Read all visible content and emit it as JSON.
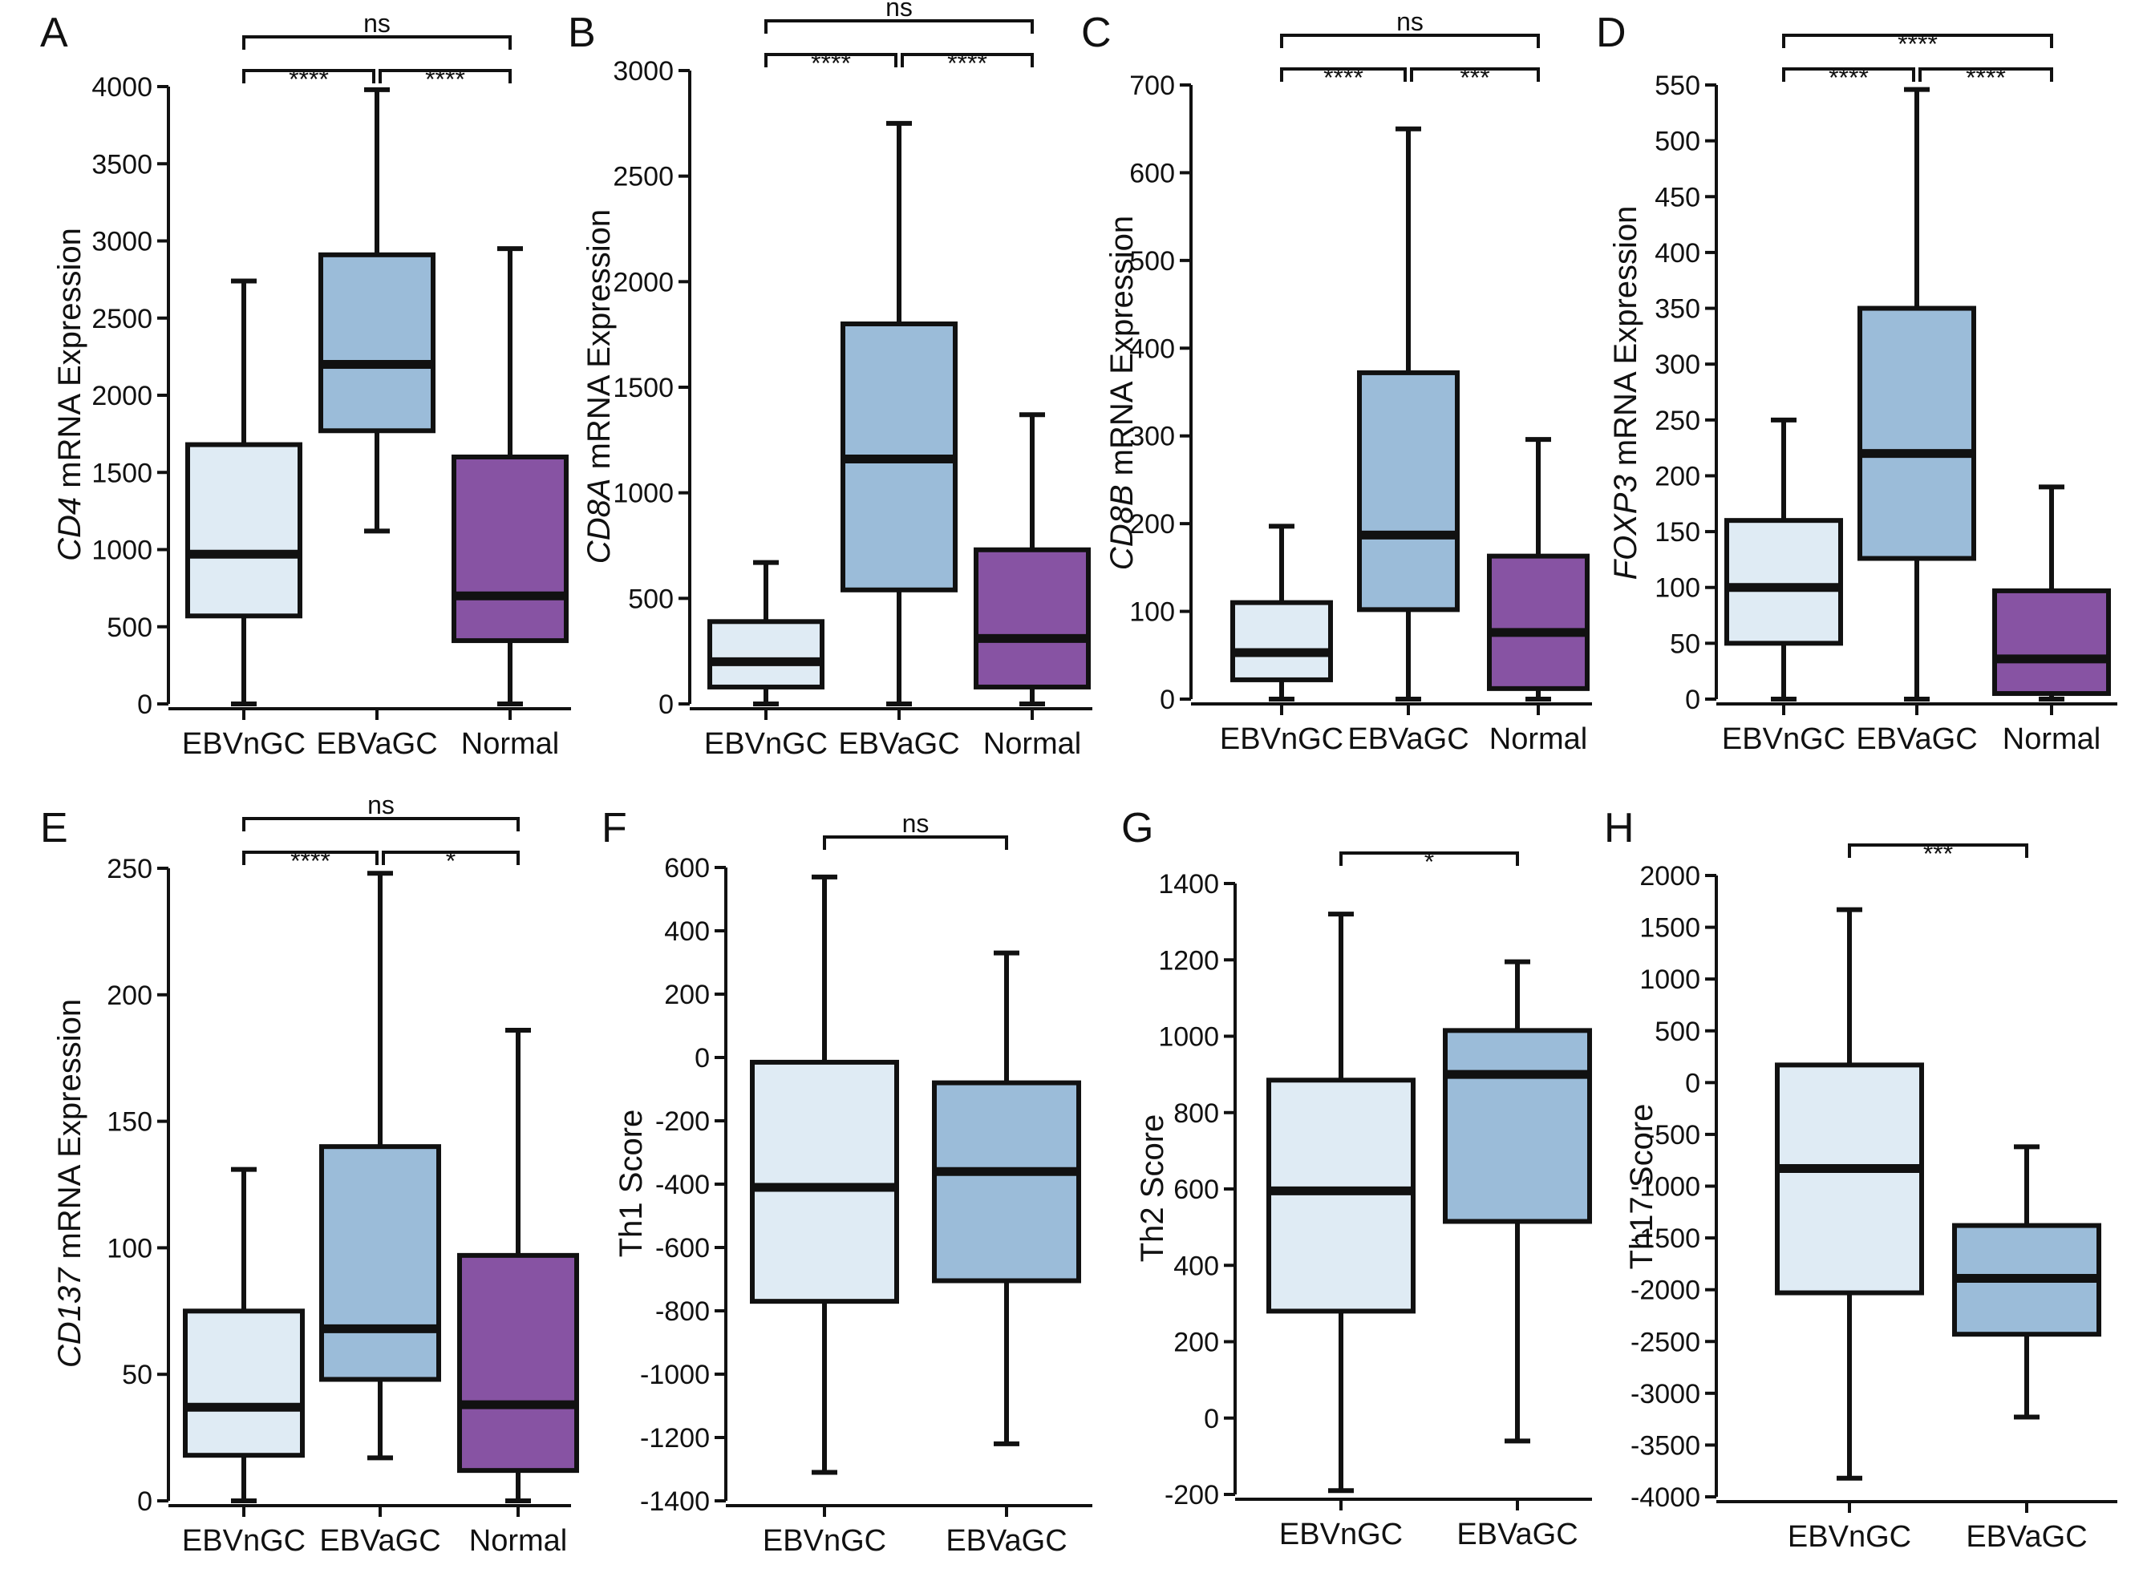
{
  "colors": {
    "EBVnGC": "#dfebf4",
    "EBVaGC": "#9bbcd9",
    "Normal": "#8753a3",
    "stroke": "#111111"
  },
  "chart_data": [
    {
      "panel": "A",
      "type": "box",
      "ylabel_gene": "CD4",
      "ylabel_rest": " mRNA Expression",
      "ylim": [
        0,
        4000
      ],
      "yticks": [
        0,
        500,
        1000,
        1500,
        2000,
        2500,
        3000,
        3500,
        4000
      ],
      "categories": [
        "EBVnGC",
        "EBVaGC",
        "Normal"
      ],
      "boxes": [
        {
          "min": 0,
          "q1": 570,
          "median": 970,
          "q3": 1680,
          "max": 2740
        },
        {
          "min": 1120,
          "q1": 1770,
          "median": 2200,
          "q3": 2910,
          "max": 3980
        },
        {
          "min": 0,
          "q1": 410,
          "median": 700,
          "q3": 1600,
          "max": 2950
        }
      ],
      "comparisons": [
        {
          "from": 0,
          "to": 1,
          "label": "****",
          "level": 1
        },
        {
          "from": 1,
          "to": 2,
          "label": "****",
          "level": 1
        },
        {
          "from": 0,
          "to": 2,
          "label": "ns",
          "level": 2
        }
      ]
    },
    {
      "panel": "B",
      "type": "box",
      "ylabel_gene": "CD8A",
      "ylabel_rest": " mRNA Expression",
      "ylim": [
        0,
        3000
      ],
      "yticks": [
        0,
        500,
        1000,
        1500,
        2000,
        2500,
        3000
      ],
      "categories": [
        "EBVnGC",
        "EBVaGC",
        "Normal"
      ],
      "boxes": [
        {
          "min": 0,
          "q1": 80,
          "median": 200,
          "q3": 390,
          "max": 670
        },
        {
          "min": 0,
          "q1": 540,
          "median": 1160,
          "q3": 1800,
          "max": 2750
        },
        {
          "min": 0,
          "q1": 80,
          "median": 310,
          "q3": 730,
          "max": 1370
        }
      ],
      "comparisons": [
        {
          "from": 0,
          "to": 1,
          "label": "****",
          "level": 1
        },
        {
          "from": 1,
          "to": 2,
          "label": "****",
          "level": 1
        },
        {
          "from": 0,
          "to": 2,
          "label": "ns",
          "level": 2
        }
      ]
    },
    {
      "panel": "C",
      "type": "box",
      "ylabel_gene": "CD8B",
      "ylabel_rest": " mRNA Expression",
      "ylim": [
        0,
        700
      ],
      "yticks": [
        0,
        100,
        200,
        300,
        400,
        500,
        600,
        700
      ],
      "categories": [
        "EBVnGC",
        "EBVaGC",
        "Normal"
      ],
      "boxes": [
        {
          "min": 0,
          "q1": 22,
          "median": 53,
          "q3": 110,
          "max": 197
        },
        {
          "min": 0,
          "q1": 102,
          "median": 187,
          "q3": 372,
          "max": 650
        },
        {
          "min": 0,
          "q1": 12,
          "median": 76,
          "q3": 163,
          "max": 296
        }
      ],
      "comparisons": [
        {
          "from": 0,
          "to": 1,
          "label": "****",
          "level": 1
        },
        {
          "from": 1,
          "to": 2,
          "label": "***",
          "level": 1
        },
        {
          "from": 0,
          "to": 2,
          "label": "ns",
          "level": 2
        }
      ]
    },
    {
      "panel": "D",
      "type": "box",
      "ylabel_gene": "FOXP3",
      "ylabel_rest": " mRNA Expression",
      "ylim": [
        0,
        550
      ],
      "yticks": [
        0,
        50,
        100,
        150,
        200,
        250,
        300,
        350,
        400,
        450,
        500,
        550
      ],
      "categories": [
        "EBVnGC",
        "EBVaGC",
        "Normal"
      ],
      "boxes": [
        {
          "min": 0,
          "q1": 50,
          "median": 100,
          "q3": 160,
          "max": 250
        },
        {
          "min": 0,
          "q1": 126,
          "median": 220,
          "q3": 350,
          "max": 546
        },
        {
          "min": 0,
          "q1": 5,
          "median": 36,
          "q3": 97,
          "max": 190
        }
      ],
      "comparisons": [
        {
          "from": 0,
          "to": 1,
          "label": "****",
          "level": 1
        },
        {
          "from": 1,
          "to": 2,
          "label": "****",
          "level": 1
        },
        {
          "from": 0,
          "to": 2,
          "label": "****",
          "level": 2
        }
      ]
    },
    {
      "panel": "E",
      "type": "box",
      "ylabel_gene": "CD137",
      "ylabel_rest": " mRNA Expression",
      "ylim": [
        0,
        250
      ],
      "yticks": [
        0,
        50,
        100,
        150,
        200,
        250
      ],
      "categories": [
        "EBVnGC",
        "EBVaGC",
        "Normal"
      ],
      "boxes": [
        {
          "min": 0,
          "q1": 18,
          "median": 37,
          "q3": 75,
          "max": 131
        },
        {
          "min": 17,
          "q1": 48,
          "median": 68,
          "q3": 140,
          "max": 248
        },
        {
          "min": 0,
          "q1": 12,
          "median": 38,
          "q3": 97,
          "max": 186
        }
      ],
      "comparisons": [
        {
          "from": 0,
          "to": 1,
          "label": "****",
          "level": 1
        },
        {
          "from": 1,
          "to": 2,
          "label": "*",
          "level": 1
        },
        {
          "from": 0,
          "to": 2,
          "label": "ns",
          "level": 2
        }
      ]
    },
    {
      "panel": "F",
      "type": "box",
      "ylabel_gene": "",
      "ylabel_rest": "Th1 Score",
      "ylim": [
        -1400,
        600
      ],
      "yticks": [
        -1400,
        -1200,
        -1000,
        -800,
        -600,
        -400,
        -200,
        0,
        200,
        400,
        600
      ],
      "categories": [
        "EBVnGC",
        "EBVaGC"
      ],
      "boxes": [
        {
          "min": -1310,
          "q1": -770,
          "median": -410,
          "q3": -15,
          "max": 570
        },
        {
          "min": -1220,
          "q1": -705,
          "median": -360,
          "q3": -80,
          "max": 330
        }
      ],
      "comparisons": [
        {
          "from": 0,
          "to": 1,
          "label": "ns",
          "level": 1
        }
      ]
    },
    {
      "panel": "G",
      "type": "box",
      "ylabel_gene": "",
      "ylabel_rest": "Th2 Score",
      "ylim": [
        -200,
        1400
      ],
      "yticks": [
        -200,
        0,
        200,
        400,
        600,
        800,
        1000,
        1200,
        1400
      ],
      "categories": [
        "EBVnGC",
        "EBVaGC"
      ],
      "boxes": [
        {
          "min": -190,
          "q1": 280,
          "median": 595,
          "q3": 885,
          "max": 1320
        },
        {
          "min": -60,
          "q1": 515,
          "median": 900,
          "q3": 1015,
          "max": 1195
        }
      ],
      "comparisons": [
        {
          "from": 0,
          "to": 1,
          "label": "*",
          "level": 1
        }
      ]
    },
    {
      "panel": "H",
      "type": "box",
      "ylabel_gene": "",
      "ylabel_rest": "Th17 Score",
      "ylim": [
        -4000,
        2000
      ],
      "yticks": [
        -4000,
        -3500,
        -3000,
        -2500,
        -2000,
        -1500,
        -1000,
        -500,
        0,
        500,
        1000,
        1500,
        2000
      ],
      "categories": [
        "EBVnGC",
        "EBVaGC"
      ],
      "boxes": [
        {
          "min": -3820,
          "q1": -2030,
          "median": -830,
          "q3": 170,
          "max": 1670
        },
        {
          "min": -3230,
          "q1": -2430,
          "median": -1890,
          "q3": -1380,
          "max": -620
        }
      ],
      "comparisons": [
        {
          "from": 0,
          "to": 1,
          "label": "***",
          "level": 1
        }
      ]
    }
  ]
}
